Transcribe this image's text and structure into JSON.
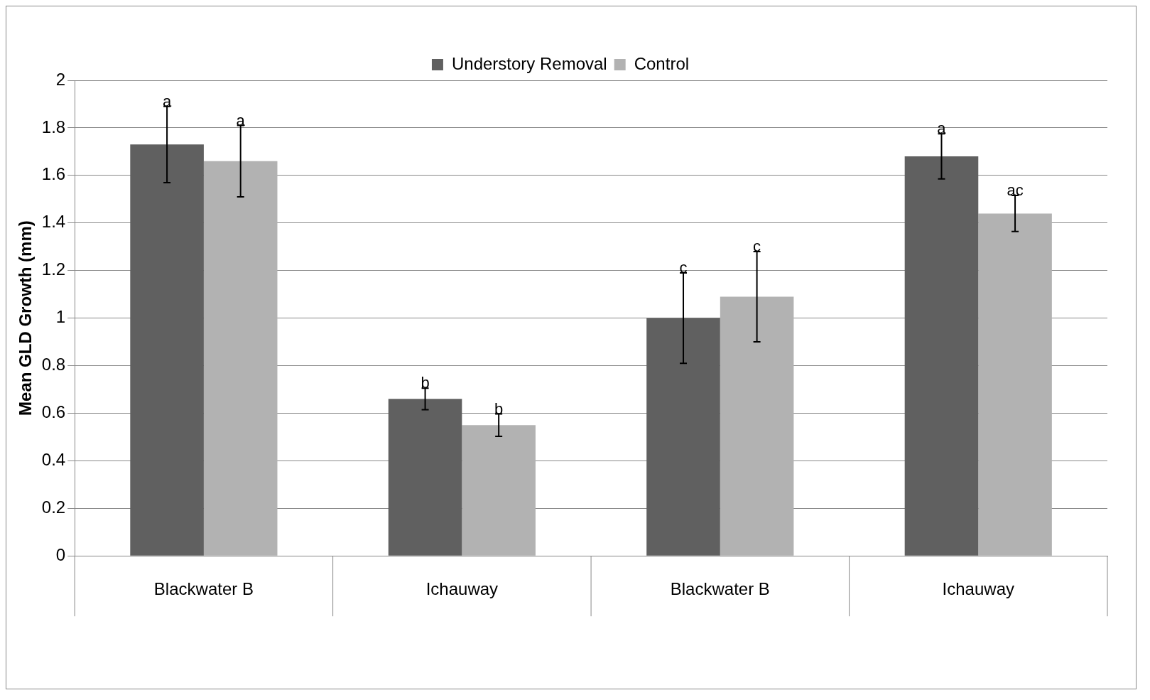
{
  "chart_data": {
    "type": "bar",
    "ylabel": "Mean GLD Growth (mm)",
    "categories": [
      "Blackwater B",
      "Ichauway",
      "Blackwater B",
      "Ichauway"
    ],
    "series": [
      {
        "name": "Understory Removal",
        "color": "#606060",
        "values": [
          1.73,
          0.66,
          1.0,
          1.68
        ],
        "errors": [
          0.16,
          0.045,
          0.19,
          0.095
        ],
        "value_labels": [
          "a",
          "b",
          "c",
          "a"
        ]
      },
      {
        "name": "Control",
        "color": "#b2b2b2",
        "values": [
          1.66,
          0.55,
          1.09,
          1.44
        ],
        "errors": [
          0.15,
          0.047,
          0.19,
          0.076
        ],
        "value_labels": [
          "a",
          "b",
          "c",
          "ac"
        ]
      }
    ],
    "ylim": [
      0,
      2
    ],
    "yticks": [
      0,
      0.2,
      0.4,
      0.6,
      0.8,
      1,
      1.2,
      1.4,
      1.6,
      1.8,
      2
    ],
    "grid": "y",
    "legend": "top"
  }
}
